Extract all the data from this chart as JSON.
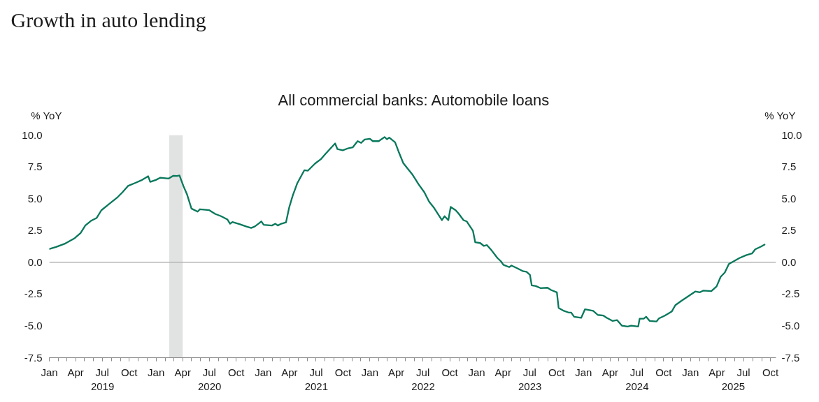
{
  "chart_data": {
    "type": "line",
    "title": "Growth in auto lending",
    "subtitle": "All commercial banks: Automobile loans",
    "ylabel": "% YoY",
    "y2label": "% YoY",
    "color": "#08785c",
    "x": [
      "2019-01-02",
      "2019-01-24",
      "2019-02-25",
      "2019-03-29",
      "2019-04-18",
      "2019-05-04",
      "2019-05-23",
      "2019-06-12",
      "2019-06-28",
      "2019-07-22",
      "2019-08-23",
      "2019-09-08",
      "2019-09-27",
      "2019-10-21",
      "2019-11-14",
      "2019-12-05",
      "2019-12-12",
      "2019-12-31",
      "2020-01-16",
      "2020-02-13",
      "2020-02-29",
      "2020-03-12",
      "2020-03-21",
      "2020-04-04",
      "2020-04-16",
      "2020-05-01",
      "2020-05-22",
      "2020-05-30",
      "2020-07-01",
      "2020-07-21",
      "2020-08-10",
      "2020-09-01",
      "2020-09-10",
      "2020-09-18",
      "2020-10-12",
      "2020-11-05",
      "2020-11-21",
      "2020-12-03",
      "2020-12-18",
      "2020-12-26",
      "2021-01-03",
      "2021-01-31",
      "2021-02-12",
      "2021-02-20",
      "2021-03-04",
      "2021-03-20",
      "2021-03-31",
      "2021-04-12",
      "2021-04-28",
      "2021-05-22",
      "2021-06-03",
      "2021-06-27",
      "2021-07-17",
      "2021-08-02",
      "2021-09-04",
      "2021-09-12",
      "2021-09-30",
      "2021-10-20",
      "2021-11-03",
      "2021-11-20",
      "2021-12-02",
      "2021-12-14",
      "2022-01-01",
      "2022-01-11",
      "2022-01-31",
      "2022-02-20",
      "2022-02-28",
      "2022-03-08",
      "2022-03-28",
      "2022-04-09",
      "2022-04-25",
      "2022-05-27",
      "2022-06-16",
      "2022-07-06",
      "2022-07-22",
      "2022-08-07",
      "2022-09-04",
      "2022-09-13",
      "2022-09-26",
      "2022-10-04",
      "2022-10-21",
      "2022-11-01",
      "2022-11-17",
      "2022-11-28",
      "2022-12-19",
      "2022-12-27",
      "2023-01-13",
      "2023-01-25",
      "2023-02-05",
      "2023-02-21",
      "2023-03-13",
      "2023-03-25",
      "2023-04-02",
      "2023-04-22",
      "2023-04-30",
      "2023-05-20",
      "2023-06-09",
      "2023-06-20",
      "2023-07-02",
      "2023-07-08",
      "2023-07-22",
      "2023-08-07",
      "2023-08-31",
      "2023-09-12",
      "2023-10-02",
      "2023-10-08",
      "2023-10-26",
      "2023-11-11",
      "2023-11-20",
      "2023-11-30",
      "2023-12-24",
      "2024-01-06",
      "2024-02-03",
      "2024-02-19",
      "2024-03-09",
      "2024-03-21",
      "2024-04-09",
      "2024-04-25",
      "2024-05-11",
      "2024-05-31",
      "2024-06-12",
      "2024-07-06",
      "2024-07-11",
      "2024-07-25",
      "2024-08-02",
      "2024-08-14",
      "2024-09-07",
      "2024-09-15",
      "2024-10-05",
      "2024-10-29",
      "2024-11-10",
      "2024-11-30",
      "2024-12-24",
      "2025-01-17",
      "2025-02-02",
      "2025-02-13",
      "2025-03-13",
      "2025-03-31",
      "2025-04-14",
      "2025-04-28",
      "2025-05-12",
      "2025-05-28",
      "2025-06-17",
      "2025-07-10",
      "2025-07-30",
      "2025-08-10",
      "2025-08-30",
      "2025-09-11"
    ],
    "values": [
      1.05,
      1.2,
      1.48,
      1.9,
      2.3,
      2.89,
      3.25,
      3.49,
      4.09,
      4.53,
      5.13,
      5.5,
      6.0,
      6.23,
      6.47,
      6.76,
      6.32,
      6.47,
      6.65,
      6.58,
      6.8,
      6.78,
      6.82,
      5.96,
      5.32,
      4.22,
      3.98,
      4.17,
      4.09,
      3.8,
      3.62,
      3.36,
      3.03,
      3.16,
      3.0,
      2.81,
      2.7,
      2.81,
      3.07,
      3.21,
      2.94,
      2.89,
      3.03,
      2.89,
      3.03,
      3.13,
      4.31,
      5.23,
      6.23,
      7.24,
      7.2,
      7.75,
      8.1,
      8.52,
      9.34,
      8.89,
      8.8,
      8.97,
      9.03,
      9.52,
      9.38,
      9.65,
      9.71,
      9.52,
      9.52,
      9.84,
      9.67,
      9.8,
      9.43,
      8.7,
      7.79,
      6.87,
      6.14,
      5.5,
      4.77,
      4.31,
      3.31,
      3.62,
      3.31,
      4.35,
      4.09,
      3.8,
      3.31,
      3.21,
      2.48,
      1.57,
      1.51,
      1.29,
      1.35,
      0.93,
      0.33,
      0.07,
      -0.2,
      -0.38,
      -0.26,
      -0.48,
      -0.71,
      -0.75,
      -0.99,
      -1.81,
      -1.87,
      -2.03,
      -2.0,
      -2.18,
      -2.36,
      -3.59,
      -3.82,
      -3.95,
      -3.95,
      -4.28,
      -4.37,
      -3.7,
      -3.82,
      -4.14,
      -4.19,
      -4.37,
      -4.61,
      -4.55,
      -4.98,
      -5.05,
      -4.98,
      -5.05,
      -4.43,
      -4.43,
      -4.28,
      -4.61,
      -4.65,
      -4.41,
      -4.19,
      -3.86,
      -3.37,
      -3.04,
      -2.67,
      -2.3,
      -2.36,
      -2.23,
      -2.27,
      -1.9,
      -1.14,
      -0.81,
      -0.13,
      0.07,
      0.33,
      0.56,
      0.69,
      1.02,
      1.24,
      1.39
    ],
    "xlim": [
      "2019-01-01",
      "2025-10-20"
    ],
    "xticks": [
      {
        "value": "2019-01-01",
        "label": "Jan"
      },
      {
        "value": "2019-04-01",
        "label": "Apr"
      },
      {
        "value": "2019-07-01",
        "label": "Jul"
      },
      {
        "value": "2019-10-01",
        "label": "Oct"
      },
      {
        "value": "2020-01-01",
        "label": "Jan"
      },
      {
        "value": "2020-04-01",
        "label": "Apr"
      },
      {
        "value": "2020-07-01",
        "label": "Jul"
      },
      {
        "value": "2020-10-01",
        "label": "Oct"
      },
      {
        "value": "2021-01-01",
        "label": "Jan"
      },
      {
        "value": "2021-04-01",
        "label": "Apr"
      },
      {
        "value": "2021-07-01",
        "label": "Jul"
      },
      {
        "value": "2021-10-01",
        "label": "Oct"
      },
      {
        "value": "2022-01-01",
        "label": "Jan"
      },
      {
        "value": "2022-04-01",
        "label": "Apr"
      },
      {
        "value": "2022-07-01",
        "label": "Jul"
      },
      {
        "value": "2022-10-01",
        "label": "Oct"
      },
      {
        "value": "2023-01-01",
        "label": "Jan"
      },
      {
        "value": "2023-04-01",
        "label": "Apr"
      },
      {
        "value": "2023-07-01",
        "label": "Jul"
      },
      {
        "value": "2023-10-01",
        "label": "Oct"
      },
      {
        "value": "2024-01-01",
        "label": "Jan"
      },
      {
        "value": "2024-04-01",
        "label": "Apr"
      },
      {
        "value": "2024-07-01",
        "label": "Jul"
      },
      {
        "value": "2024-10-01",
        "label": "Oct"
      },
      {
        "value": "2025-01-01",
        "label": "Jan"
      },
      {
        "value": "2025-04-01",
        "label": "Apr"
      },
      {
        "value": "2025-07-01",
        "label": "Jul"
      },
      {
        "value": "2025-10-01",
        "label": "Oct"
      }
    ],
    "x2lim": [
      "2019-01-01",
      "2025-10-20"
    ],
    "x2ticks": [
      {
        "value": "2019-07-02",
        "label": "2019"
      },
      {
        "value": "2020-07-02",
        "label": "2020"
      },
      {
        "value": "2021-07-02",
        "label": "2021"
      },
      {
        "value": "2022-07-02",
        "label": "2022"
      },
      {
        "value": "2023-07-02",
        "label": "2023"
      },
      {
        "value": "2024-07-02",
        "label": "2024"
      },
      {
        "value": "2025-05-27",
        "label": "2025"
      }
    ],
    "ylim": [
      -7.5,
      10
    ],
    "yticks": [
      -7.5,
      {
        "value": -5,
        "label": "-5.0"
      },
      -2.5,
      {
        "value": 0,
        "label": "0.0"
      },
      2.5,
      {
        "value": 5,
        "label": "5.0"
      },
      7.5,
      {
        "value": 10,
        "label": "10.0"
      }
    ],
    "y2lim": [
      -7.5,
      10
    ],
    "y2ticks": [
      -7.5,
      {
        "value": -5,
        "label": "-5.0"
      },
      -2.5,
      {
        "value": 0,
        "label": "0.0"
      },
      2.5,
      {
        "value": 5,
        "label": "5.0"
      },
      7.5,
      {
        "value": 10,
        "label": "10.0"
      }
    ],
    "ref_lines": [
      {
        "axis": "y",
        "value": 0,
        "color": "#b4b4b4"
      }
    ],
    "bands": [
      {
        "axis": "x",
        "from": "2020-02-15",
        "to": "2020-04-01",
        "color": "#e1e3e2"
      }
    ]
  }
}
